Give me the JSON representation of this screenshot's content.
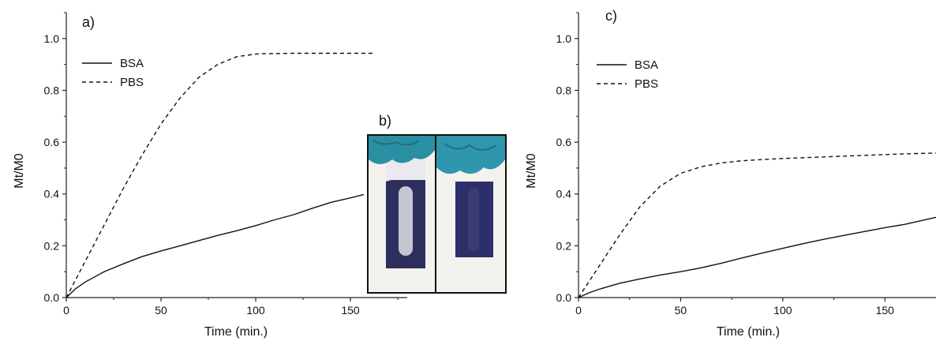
{
  "panels": {
    "a": {
      "label": "a)"
    },
    "b": {
      "label": "b)"
    },
    "c": {
      "label": "c)"
    }
  },
  "chart_data": [
    {
      "type": "line",
      "panel": "a)",
      "title": "",
      "xlabel": "Time (min.)",
      "ylabel": "Mt/M0",
      "xlim": [
        0,
        180
      ],
      "ylim": [
        0,
        1.1
      ],
      "xticks": [
        0,
        50,
        100,
        150
      ],
      "yticks": [
        0.0,
        0.2,
        0.4,
        0.6,
        0.8,
        1.0
      ],
      "ytick_labels": [
        "0.0",
        "0.2",
        "0.4",
        "0.6",
        "0.8",
        "1.0"
      ],
      "legend_position": "top-left",
      "series": [
        {
          "name": "BSA",
          "style": "solid",
          "x": [
            0,
            5,
            10,
            20,
            30,
            40,
            50,
            60,
            70,
            80,
            90,
            100,
            110,
            120,
            130,
            140,
            150,
            157
          ],
          "y": [
            0.0,
            0.035,
            0.06,
            0.1,
            0.13,
            0.158,
            0.18,
            0.2,
            0.22,
            0.24,
            0.258,
            0.278,
            0.3,
            0.32,
            0.345,
            0.368,
            0.385,
            0.398
          ]
        },
        {
          "name": "PBS",
          "style": "dashed",
          "x": [
            0,
            5,
            10,
            20,
            30,
            40,
            50,
            60,
            70,
            80,
            90,
            100,
            105,
            110,
            120,
            130,
            140,
            150,
            162
          ],
          "y": [
            0.0,
            0.07,
            0.14,
            0.28,
            0.42,
            0.55,
            0.67,
            0.77,
            0.85,
            0.9,
            0.93,
            0.94,
            0.942,
            0.942,
            0.943,
            0.943,
            0.943,
            0.943,
            0.943
          ]
        }
      ]
    },
    {
      "type": "line",
      "panel": "c)",
      "title": "",
      "xlabel": "Time (min.)",
      "ylabel": "Mt/M0",
      "xlim": [
        0,
        175
      ],
      "ylim": [
        0,
        1.1
      ],
      "xticks": [
        0,
        50,
        100,
        150
      ],
      "yticks": [
        0.0,
        0.2,
        0.4,
        0.6,
        0.8,
        1.0
      ],
      "ytick_labels": [
        "0.0",
        "0.2",
        "0.4",
        "0.6",
        "0.8",
        "1.0"
      ],
      "legend_position": "top-left",
      "series": [
        {
          "name": "BSA",
          "style": "solid",
          "x": [
            0,
            5,
            10,
            20,
            30,
            40,
            50,
            60,
            70,
            80,
            90,
            100,
            110,
            120,
            130,
            140,
            150,
            160,
            175
          ],
          "y": [
            0.0,
            0.018,
            0.032,
            0.055,
            0.072,
            0.087,
            0.1,
            0.115,
            0.133,
            0.153,
            0.172,
            0.19,
            0.208,
            0.225,
            0.24,
            0.255,
            0.27,
            0.283,
            0.31
          ]
        },
        {
          "name": "PBS",
          "style": "dashed",
          "x": [
            0,
            5,
            10,
            20,
            30,
            40,
            50,
            60,
            70,
            80,
            90,
            100,
            110,
            120,
            130,
            140,
            150,
            160,
            175
          ],
          "y": [
            0.0,
            0.06,
            0.12,
            0.24,
            0.35,
            0.43,
            0.48,
            0.505,
            0.52,
            0.528,
            0.533,
            0.537,
            0.54,
            0.543,
            0.546,
            0.549,
            0.552,
            0.555,
            0.558
          ]
        }
      ]
    }
  ]
}
